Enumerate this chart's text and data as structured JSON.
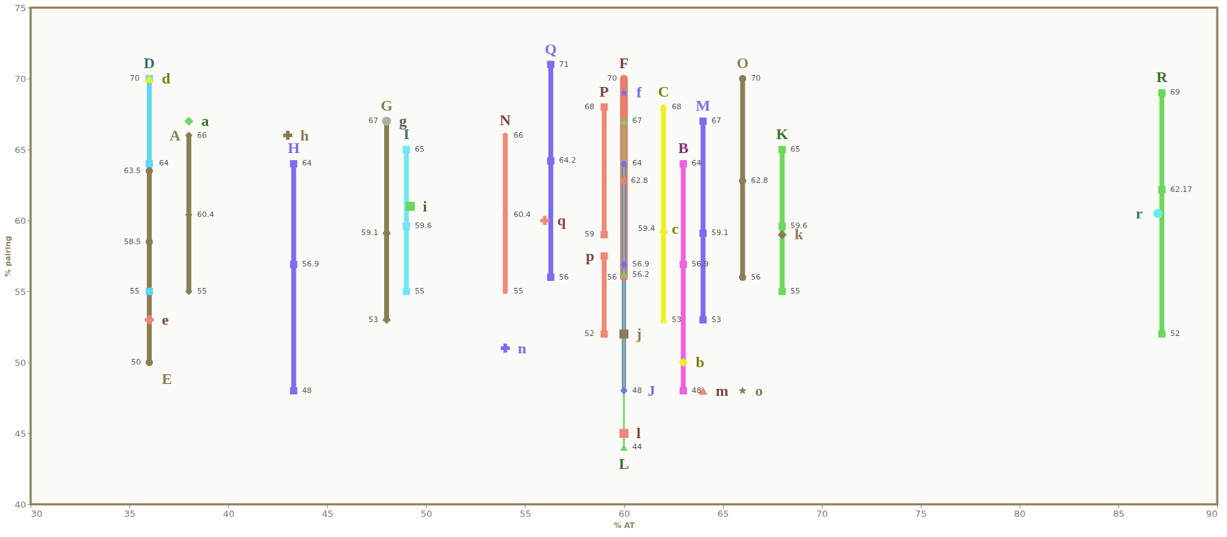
{
  "chart_data": {
    "type": "scatter",
    "xlabel": "% AT",
    "ylabel": "% pairing",
    "xlim": [
      30,
      90
    ],
    "ylim": [
      40,
      75
    ],
    "xticks": [
      30,
      35,
      40,
      45,
      50,
      55,
      60,
      65,
      70,
      75,
      80,
      85,
      90
    ],
    "yticks": [
      40,
      45,
      50,
      55,
      60,
      65,
      70,
      75
    ],
    "grid": false,
    "series": [
      {
        "name": "D",
        "type": "line",
        "color": "#5fd8f0",
        "marker": "square",
        "x": [
          36,
          36,
          36
        ],
        "values": [
          70,
          64,
          55
        ],
        "value_labels": [
          "70",
          "64",
          "55"
        ]
      },
      {
        "name": "E",
        "type": "line",
        "color": "#8b7d55",
        "marker": "circle",
        "x": [
          36,
          36,
          36
        ],
        "values": [
          63.5,
          58.5,
          50
        ],
        "value_labels": [
          "63.5",
          "58.5",
          "50"
        ]
      },
      {
        "name": "A",
        "type": "line",
        "color": "#8b7d55",
        "marker": "diamond",
        "x": [
          38,
          38,
          38
        ],
        "values": [
          66,
          60.4,
          55
        ],
        "value_labels": [
          "66",
          "60.4",
          "55"
        ]
      },
      {
        "name": "H",
        "type": "line",
        "color": "#7b6cf0",
        "marker": "square",
        "x": [
          43.3,
          43.3,
          43.3
        ],
        "values": [
          64,
          56.9,
          48
        ],
        "value_labels": [
          "64",
          "56.9",
          "48"
        ]
      },
      {
        "name": "G",
        "type": "line",
        "color": "#8b7d55",
        "marker": "cross",
        "x": [
          48,
          48,
          48
        ],
        "values": [
          67,
          59.1,
          53
        ],
        "value_labels": [
          "67",
          "59.1",
          "53"
        ]
      },
      {
        "name": "I",
        "type": "line",
        "color": "#6ee8f4",
        "marker": "square",
        "x": [
          49,
          49,
          49
        ],
        "values": [
          65,
          59.6,
          55
        ],
        "value_labels": [
          "65",
          "59.6",
          "55"
        ]
      },
      {
        "name": "N",
        "type": "line",
        "color": "#f08878",
        "marker": "star",
        "x": [
          54,
          54,
          54
        ],
        "values": [
          66,
          60.4,
          55
        ],
        "value_labels": [
          "66",
          "60.4",
          "55"
        ]
      },
      {
        "name": "Q",
        "type": "line",
        "color": "#7b6cf0",
        "marker": "square",
        "x": [
          56.3,
          56.3,
          56.3
        ],
        "values": [
          71,
          64.2,
          56
        ],
        "value_labels": [
          "71",
          "64.2",
          "56"
        ]
      },
      {
        "name": "P",
        "type": "line",
        "color": "#f08878",
        "marker": "square",
        "x": [
          59,
          59
        ],
        "values": [
          68,
          59
        ],
        "value_labels": [
          "68",
          "59"
        ]
      },
      {
        "name": "p",
        "type": "line",
        "color": "#f08878",
        "marker": "square",
        "x": [
          59,
          59
        ],
        "values": [
          57.5,
          52
        ],
        "value_labels": [
          null,
          "52"
        ]
      },
      {
        "name": "F",
        "type": "line",
        "color": "#e8806a",
        "marker": "circle",
        "x": [
          60,
          60,
          60
        ],
        "values": [
          70,
          62.8,
          56
        ],
        "value_labels": [
          "70",
          "62.8",
          "56"
        ]
      },
      {
        "name": "J",
        "type": "line",
        "color": "#7b6cf0",
        "marker": "diamond",
        "x": [
          60,
          60,
          60
        ],
        "values": [
          64,
          56.9,
          48
        ],
        "value_labels": [
          "64",
          "56.9",
          "48"
        ]
      },
      {
        "name": "L",
        "type": "line",
        "color": "#6cd85c",
        "marker": "triangle",
        "x": [
          60,
          60,
          60
        ],
        "values": [
          67,
          56.2,
          44
        ],
        "value_labels": [
          "67",
          "56.2",
          "44"
        ]
      },
      {
        "name": "C",
        "type": "line",
        "color": "#f0f020",
        "marker": "triangle",
        "x": [
          62,
          62
        ],
        "values": [
          68,
          53
        ],
        "value_labels": [
          "68",
          "53"
        ]
      },
      {
        "name": "B",
        "type": "line",
        "color": "#f060e0",
        "marker": "square",
        "x": [
          63,
          63,
          63
        ],
        "values": [
          64,
          56.9,
          48
        ],
        "value_labels": [
          "64",
          "56.9",
          "48"
        ]
      },
      {
        "name": "M",
        "type": "line",
        "color": "#7b6cf0",
        "marker": "square",
        "x": [
          64,
          64,
          64
        ],
        "values": [
          67,
          59.1,
          53
        ],
        "value_labels": [
          "67",
          "59.1",
          "53"
        ]
      },
      {
        "name": "O",
        "type": "line",
        "color": "#8b7d55",
        "marker": "circle",
        "x": [
          66,
          66,
          66
        ],
        "values": [
          70,
          62.8,
          56
        ],
        "value_labels": [
          "70",
          "62.8",
          "56"
        ]
      },
      {
        "name": "K",
        "type": "line",
        "color": "#6cd85c",
        "marker": "square",
        "x": [
          68,
          68,
          68
        ],
        "values": [
          65,
          59.6,
          55
        ],
        "value_labels": [
          "65",
          "59.6",
          "55"
        ]
      },
      {
        "name": "R",
        "type": "line",
        "color": "#6cd85c",
        "marker": "square",
        "x": [
          87.2,
          87.2,
          87.2
        ],
        "values": [
          69,
          62.17,
          52
        ],
        "value_labels": [
          "69",
          "62.17",
          "52"
        ]
      },
      {
        "name": "a",
        "color": "#6cd85c",
        "marker": "diamond",
        "x": [
          38
        ],
        "values": [
          67
        ]
      },
      {
        "name": "d",
        "color": "#f0f020",
        "marker": "triangle",
        "x": [
          36
        ],
        "values": [
          70
        ]
      },
      {
        "name": "e",
        "color": "#f08878",
        "marker": "cross",
        "x": [
          36
        ],
        "values": [
          53
        ]
      },
      {
        "name": "h",
        "color": "#8b7d55",
        "marker": "cross",
        "x": [
          43
        ],
        "values": [
          66
        ]
      },
      {
        "name": "g",
        "color": "#b0b0a0",
        "marker": "circle",
        "x": [
          48
        ],
        "values": [
          67
        ]
      },
      {
        "name": "i",
        "color": "#6cd85c",
        "marker": "square",
        "x": [
          49.2
        ],
        "values": [
          61
        ]
      },
      {
        "name": "n",
        "color": "#7b6cf0",
        "marker": "cross",
        "x": [
          54
        ],
        "values": [
          51
        ]
      },
      {
        "name": "q",
        "color": "#f08878",
        "marker": "cross",
        "x": [
          56
        ],
        "values": [
          60
        ]
      },
      {
        "name": "f",
        "color": "#7b6cf0",
        "marker": "star",
        "x": [
          60
        ],
        "values": [
          69
        ]
      },
      {
        "name": "c",
        "color": "#f0f020",
        "marker": "triangle",
        "x": [
          62
        ],
        "values": [
          59.4
        ],
        "value_labels": [
          "59.4"
        ]
      },
      {
        "name": "j",
        "color": "#8b7d55",
        "marker": "square",
        "x": [
          60
        ],
        "values": [
          52
        ]
      },
      {
        "name": "l",
        "color": "#f08878",
        "marker": "square",
        "x": [
          60
        ],
        "values": [
          45
        ]
      },
      {
        "name": "b",
        "color": "#f0f020",
        "marker": "diamond",
        "x": [
          63
        ],
        "values": [
          50
        ]
      },
      {
        "name": "m",
        "color": "#f08878",
        "marker": "triangle",
        "x": [
          64
        ],
        "values": [
          48
        ]
      },
      {
        "name": "o",
        "color": "#8b7d55",
        "marker": "star",
        "x": [
          66
        ],
        "values": [
          48
        ]
      },
      {
        "name": "k",
        "color": "#8b7d55",
        "marker": "diamond",
        "x": [
          68
        ],
        "values": [
          59
        ]
      },
      {
        "name": "r",
        "color": "#6ee8f4",
        "marker": "circle",
        "x": [
          87
        ],
        "values": [
          60.5
        ]
      }
    ]
  }
}
